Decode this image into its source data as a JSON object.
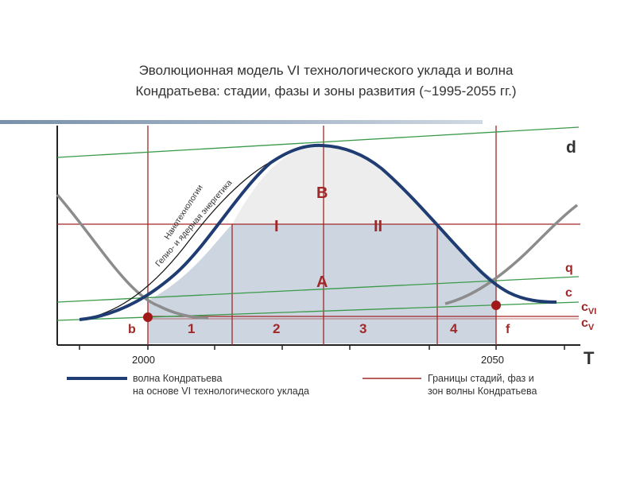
{
  "title": {
    "line1": "Эволюционная модель VI технологического уклада и волна",
    "line2": "Кондратьева: стадии, фазы и зоны развития (~1995-2055 гг.)"
  },
  "diagram": {
    "zone_labels": {
      "upper": "B",
      "lower": "A",
      "phase_1": "I",
      "phase_2": "II"
    },
    "stage_numbers": [
      "1",
      "2",
      "3",
      "4"
    ],
    "point_labels": {
      "b": "b",
      "f": "f"
    },
    "line_labels": {
      "d": "d",
      "q": "q",
      "c": "c",
      "c6_base": "c",
      "c6_sub": "VI",
      "c5_base": "c",
      "c5_sub": "V"
    },
    "axis": {
      "t_label": "T",
      "tick_2000": "2000",
      "tick_2050": "2050"
    },
    "rotated_text": {
      "line1": "Нанотехнологии",
      "line2": "Гелио- и ядерная энергетика"
    },
    "colors": {
      "wave": "#1f3d73",
      "boundary": "#a02828",
      "trend": "#3a9a4a",
      "gray_curve": "#8c8c8c",
      "zone_a_fill": "#cdd5e0",
      "zone_b_fill": "#efefef"
    }
  },
  "legend": {
    "wave_line1": "волна Кондратьева",
    "wave_line2": "на основе VI технологического уклада",
    "bounds_line1": "Границы стадий, фаз и",
    "bounds_line2": "зон волны Кондратьева"
  }
}
